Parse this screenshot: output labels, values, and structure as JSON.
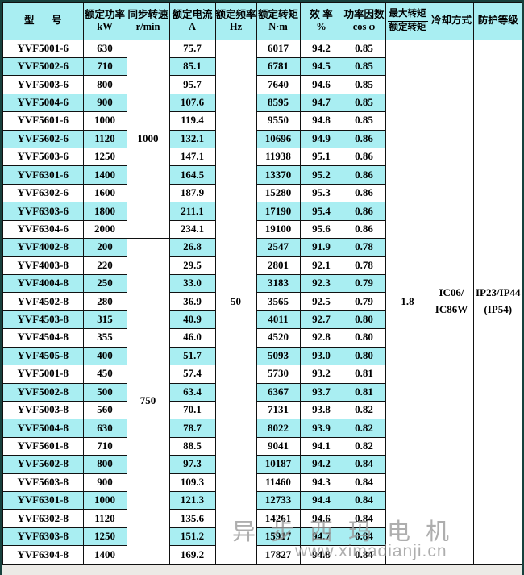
{
  "header": {
    "columns": [
      {
        "line1": "型 号",
        "line2": ""
      },
      {
        "line1": "额定功率",
        "line2": "kW"
      },
      {
        "line1": "同步转速",
        "line2": "r/min"
      },
      {
        "line1": "额定电流",
        "line2": "A"
      },
      {
        "line1": "额定频率",
        "line2": "Hz"
      },
      {
        "line1": "额定转矩",
        "line2": "N·m"
      },
      {
        "line1": "效 率",
        "line2": "%"
      },
      {
        "line1": "功率因数",
        "line2": "cos φ"
      },
      {
        "numerator": "最大转矩",
        "denominator": "额定转矩"
      },
      {
        "line1": "冷却方式",
        "line2": ""
      },
      {
        "line1": "防护等级",
        "line2": ""
      }
    ]
  },
  "row_fields": [
    "model",
    "power_kw",
    "current_a",
    "torque_nm",
    "efficiency_pct",
    "cos_phi"
  ],
  "rows": [
    [
      "YVF5001-6",
      "630",
      "75.7",
      "6017",
      "94.2",
      "0.85"
    ],
    [
      "YVF5002-6",
      "710",
      "85.1",
      "6781",
      "94.5",
      "0.85"
    ],
    [
      "YVF5003-6",
      "800",
      "95.7",
      "7640",
      "94.6",
      "0.85"
    ],
    [
      "YVF5004-6",
      "900",
      "107.6",
      "8595",
      "94.7",
      "0.85"
    ],
    [
      "YVF5601-6",
      "1000",
      "119.4",
      "9550",
      "94.8",
      "0.85"
    ],
    [
      "YVF5602-6",
      "1120",
      "132.1",
      "10696",
      "94.9",
      "0.86"
    ],
    [
      "YVF5603-6",
      "1250",
      "147.1",
      "11938",
      "95.1",
      "0.86"
    ],
    [
      "YVF6301-6",
      "1400",
      "164.5",
      "13370",
      "95.2",
      "0.86"
    ],
    [
      "YVF6302-6",
      "1600",
      "187.9",
      "15280",
      "95.3",
      "0.86"
    ],
    [
      "YVF6303-6",
      "1800",
      "211.1",
      "17190",
      "95.4",
      "0.86"
    ],
    [
      "YVF6304-6",
      "2000",
      "234.1",
      "19100",
      "95.6",
      "0.86"
    ],
    [
      "YVF4002-8",
      "200",
      "26.8",
      "2547",
      "91.9",
      "0.78"
    ],
    [
      "YVF4003-8",
      "220",
      "29.5",
      "2801",
      "92.1",
      "0.78"
    ],
    [
      "YVF4004-8",
      "250",
      "33.0",
      "3183",
      "92.3",
      "0.79"
    ],
    [
      "YVF4502-8",
      "280",
      "36.9",
      "3565",
      "92.5",
      "0.79"
    ],
    [
      "YVF4503-8",
      "315",
      "40.9",
      "4011",
      "92.7",
      "0.80"
    ],
    [
      "YVF4504-8",
      "355",
      "46.0",
      "4520",
      "92.8",
      "0.80"
    ],
    [
      "YVF4505-8",
      "400",
      "51.7",
      "5093",
      "93.0",
      "0.80"
    ],
    [
      "YVF5001-8",
      "450",
      "57.4",
      "5730",
      "93.2",
      "0.81"
    ],
    [
      "YVF5002-8",
      "500",
      "63.4",
      "6367",
      "93.7",
      "0.81"
    ],
    [
      "YVF5003-8",
      "560",
      "70.1",
      "7131",
      "93.8",
      "0.82"
    ],
    [
      "YVF5004-8",
      "630",
      "78.7",
      "8022",
      "93.9",
      "0.82"
    ],
    [
      "YVF5601-8",
      "710",
      "88.5",
      "9041",
      "94.1",
      "0.82"
    ],
    [
      "YVF5602-8",
      "800",
      "97.3",
      "10187",
      "94.2",
      "0.84"
    ],
    [
      "YVF5603-8",
      "900",
      "109.3",
      "11460",
      "94.3",
      "0.84"
    ],
    [
      "YVF6301-8",
      "1000",
      "121.3",
      "12733",
      "94.4",
      "0.84"
    ],
    [
      "YVF6302-8",
      "1120",
      "135.6",
      "14261",
      "94.6",
      "0.84"
    ],
    [
      "YVF6303-8",
      "1250",
      "151.2",
      "15917",
      "94.7",
      "0.84"
    ],
    [
      "YVF6304-8",
      "1400",
      "169.2",
      "17827",
      "94.8",
      "0.84"
    ]
  ],
  "merged": {
    "sync_speed": [
      {
        "value": "1000",
        "rows": 11
      },
      {
        "value": "750",
        "rows": 18
      }
    ],
    "frequency_hz": "50",
    "torque_ratio": "1.8",
    "cooling": {
      "line1": "IC06/",
      "line2": "IC86W"
    },
    "protection": {
      "line1": "IP23/IP44",
      "line2": "(IP54)"
    }
  },
  "watermark": {
    "line1": "异步西玛电机",
    "line2": "www.ximadianji.cn"
  },
  "colors": {
    "stripe": "#a9eef2",
    "header_bg": "#a9eef2",
    "border": "#111111",
    "frame": "#17413d",
    "page_bg": "#eceae6",
    "watermark": "#9b9b9b"
  }
}
